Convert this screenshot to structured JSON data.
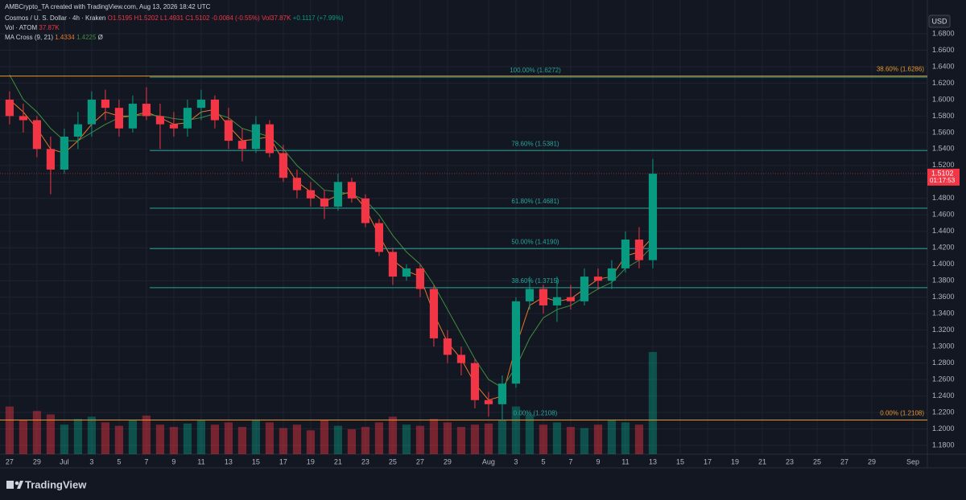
{
  "header": {
    "credit": "AMBCrypto_TA created with TradingView.com, Aug 13, 2026 18:42 UTC",
    "symbol": "Cosmos / U. S. Dollar · 4h · Kraken",
    "ohlc": [
      "O1.5195",
      "H1.5202",
      "L1.4931",
      "C1.5102",
      "-0.0084 (-0.55%)"
    ],
    "vol": "Vol37.87K",
    "change": "+0.1117 (+7.99%)",
    "vol_indicator": "Vol · ATOM",
    "vol_value": "37.87K",
    "ma_indicator": "MA Cross (9, 21)",
    "ma_values": [
      "1.4334",
      "1.4225"
    ],
    "ma_extra": "Ø",
    "currency": "USD",
    "price_tag": "1.5102",
    "countdown": "01:17:53",
    "brand": "TradingView"
  },
  "chart_data": {
    "type": "candlestick",
    "x": [
      0,
      1,
      2,
      3,
      4,
      5,
      6,
      7,
      8,
      9,
      10,
      11,
      12,
      13,
      14,
      15,
      16,
      17,
      18,
      19,
      20,
      21,
      22,
      23,
      24,
      25,
      26,
      27,
      28,
      29,
      30,
      31,
      32,
      33,
      34,
      35,
      36,
      37,
      38,
      39,
      40,
      41,
      42,
      43,
      44,
      45,
      46,
      47
    ],
    "open": [
      1.6,
      1.58,
      1.575,
      1.54,
      1.515,
      1.555,
      1.57,
      1.6,
      1.59,
      1.565,
      1.595,
      1.58,
      1.57,
      1.565,
      1.59,
      1.6,
      1.575,
      1.55,
      1.54,
      1.57,
      1.535,
      1.505,
      1.49,
      1.48,
      1.47,
      1.5,
      1.48,
      1.45,
      1.415,
      1.385,
      1.395,
      1.37,
      1.31,
      1.29,
      1.28,
      1.235,
      1.23,
      1.255,
      1.355,
      1.37,
      1.35,
      1.36,
      1.355,
      1.385,
      1.38,
      1.395,
      1.43,
      1.405
    ],
    "high": [
      1.61,
      1.595,
      1.58,
      1.555,
      1.565,
      1.585,
      1.61,
      1.612,
      1.6,
      1.605,
      1.615,
      1.595,
      1.585,
      1.6,
      1.612,
      1.605,
      1.59,
      1.565,
      1.58,
      1.575,
      1.545,
      1.515,
      1.5,
      1.49,
      1.51,
      1.505,
      1.485,
      1.455,
      1.42,
      1.4,
      1.4,
      1.375,
      1.32,
      1.3,
      1.285,
      1.245,
      1.265,
      1.36,
      1.385,
      1.375,
      1.385,
      1.375,
      1.395,
      1.395,
      1.405,
      1.44,
      1.445,
      1.528
    ],
    "low": [
      1.57,
      1.56,
      1.53,
      1.485,
      1.51,
      1.54,
      1.555,
      1.575,
      1.555,
      1.56,
      1.575,
      1.54,
      1.555,
      1.555,
      1.575,
      1.565,
      1.54,
      1.525,
      1.535,
      1.53,
      1.5,
      1.48,
      1.47,
      1.455,
      1.465,
      1.475,
      1.445,
      1.41,
      1.375,
      1.38,
      1.36,
      1.3,
      1.28,
      1.265,
      1.225,
      1.215,
      1.21,
      1.25,
      1.345,
      1.34,
      1.33,
      1.345,
      1.35,
      1.37,
      1.37,
      1.39,
      1.395,
      1.395
    ],
    "close": [
      1.58,
      1.575,
      1.54,
      1.515,
      1.555,
      1.57,
      1.6,
      1.59,
      1.565,
      1.595,
      1.58,
      1.57,
      1.565,
      1.59,
      1.6,
      1.575,
      1.55,
      1.54,
      1.57,
      1.535,
      1.505,
      1.49,
      1.48,
      1.47,
      1.5,
      1.48,
      1.45,
      1.415,
      1.385,
      1.395,
      1.37,
      1.31,
      1.29,
      1.28,
      1.235,
      1.23,
      1.255,
      1.355,
      1.37,
      1.35,
      1.36,
      1.355,
      1.385,
      1.38,
      1.395,
      1.43,
      1.405,
      1.51
    ],
    "volume": [
      420,
      300,
      380,
      350,
      260,
      310,
      330,
      280,
      250,
      300,
      340,
      260,
      240,
      270,
      300,
      260,
      280,
      240,
      300,
      280,
      230,
      260,
      210,
      300,
      250,
      220,
      240,
      280,
      330,
      260,
      250,
      310,
      280,
      240,
      260,
      270,
      300,
      420,
      350,
      260,
      280,
      240,
      230,
      260,
      300,
      280,
      260,
      900
    ],
    "up_color": "#089981",
    "down_color": "#f23645",
    "series": [
      {
        "color": "#e8782c",
        "values": [
          1.6,
          1.585,
          1.565,
          1.54,
          1.535,
          1.55,
          1.57,
          1.585,
          1.58,
          1.58,
          1.585,
          1.578,
          1.57,
          1.572,
          1.585,
          1.588,
          1.568,
          1.55,
          1.552,
          1.555,
          1.525,
          1.5,
          1.488,
          1.476,
          1.484,
          1.488,
          1.468,
          1.435,
          1.405,
          1.392,
          1.385,
          1.34,
          1.305,
          1.285,
          1.255,
          1.235,
          1.24,
          1.3,
          1.35,
          1.36,
          1.355,
          1.358,
          1.37,
          1.382,
          1.385,
          1.41,
          1.415,
          1.433
        ]
      },
      {
        "color": "#3f8f3f",
        "values": [
          1.63,
          1.6,
          1.585,
          1.565,
          1.55,
          1.55,
          1.56,
          1.57,
          1.578,
          1.58,
          1.582,
          1.58,
          1.577,
          1.575,
          1.578,
          1.583,
          1.578,
          1.565,
          1.56,
          1.555,
          1.54,
          1.52,
          1.505,
          1.49,
          1.488,
          1.485,
          1.478,
          1.46,
          1.435,
          1.415,
          1.4,
          1.375,
          1.345,
          1.315,
          1.285,
          1.26,
          1.25,
          1.275,
          1.31,
          1.335,
          1.345,
          1.35,
          1.36,
          1.37,
          1.378,
          1.395,
          1.405,
          1.4225
        ]
      }
    ],
    "fib_color": "#26a69a",
    "fib_levels": [
      {
        "value": 1.6272,
        "label": "100.00% (1.6272)"
      },
      {
        "value": 1.5381,
        "label": "78.60% (1.5381)"
      },
      {
        "value": 1.4681,
        "label": "61.80% (1.4681)"
      },
      {
        "value": 1.419,
        "label": "50.00% (1.4190)"
      },
      {
        "value": 1.3715,
        "label": "38.60% (1.3715)"
      },
      {
        "value": 1.2108,
        "label": "0.00% (1.2108)"
      }
    ],
    "level_color": "#e6962e",
    "levels": [
      {
        "value": 1.6286,
        "label": "38.60% (1.6286)"
      },
      {
        "value": 1.2108,
        "label": "0.00% (1.2108)"
      }
    ],
    "last_price": 1.5102,
    "xlim": [
      -0.7,
      67.06
    ],
    "ylim": [
      1.1693,
      1.721
    ],
    "y2lim": [
      0,
      4000
    ],
    "xticks": [
      {
        "value": 0,
        "label": "27"
      },
      {
        "value": 2,
        "label": "29"
      },
      {
        "value": 4,
        "label": "Jul"
      },
      {
        "value": 6,
        "label": "3"
      },
      {
        "value": 8,
        "label": "5"
      },
      {
        "value": 10,
        "label": "7"
      },
      {
        "value": 12,
        "label": "9"
      },
      {
        "value": 14,
        "label": "11"
      },
      {
        "value": 16,
        "label": "13"
      },
      {
        "value": 18,
        "label": "15"
      },
      {
        "value": 20,
        "label": "17"
      },
      {
        "value": 22,
        "label": "19"
      },
      {
        "value": 24,
        "label": "21"
      },
      {
        "value": 26,
        "label": "23"
      },
      {
        "value": 28,
        "label": "25"
      },
      {
        "value": 30,
        "label": "27"
      },
      {
        "value": 32,
        "label": "29"
      },
      {
        "value": 35,
        "label": "Aug"
      },
      {
        "value": 37,
        "label": "3"
      },
      {
        "value": 39,
        "label": "5"
      },
      {
        "value": 41,
        "label": "7"
      },
      {
        "value": 43,
        "label": "9"
      },
      {
        "value": 45,
        "label": "11"
      },
      {
        "value": 47,
        "label": "13"
      },
      {
        "value": 49,
        "label": "15"
      },
      {
        "value": 51,
        "label": "17"
      },
      {
        "value": 53,
        "label": "19"
      },
      {
        "value": 55,
        "label": "21"
      },
      {
        "value": 57,
        "label": "23"
      },
      {
        "value": 59,
        "label": "25"
      },
      {
        "value": 61,
        "label": "27"
      },
      {
        "value": 63,
        "label": "29"
      },
      {
        "value": 66,
        "label": "Sep"
      }
    ],
    "yticks": [
      {
        "value": 1.68,
        "label": "1.6800"
      },
      {
        "value": 1.66,
        "label": "1.6600"
      },
      {
        "value": 1.64,
        "label": "1.6400"
      },
      {
        "value": 1.62,
        "label": "1.6200"
      },
      {
        "value": 1.6,
        "label": "1.6000"
      },
      {
        "value": 1.58,
        "label": "1.5800"
      },
      {
        "value": 1.56,
        "label": "1.5600"
      },
      {
        "value": 1.54,
        "label": "1.5400"
      },
      {
        "value": 1.52,
        "label": "1.5200"
      },
      {
        "value": 1.5,
        "label": "1.5000"
      },
      {
        "value": 1.48,
        "label": "1.4800"
      },
      {
        "value": 1.46,
        "label": "1.4600"
      },
      {
        "value": 1.44,
        "label": "1.4400"
      },
      {
        "value": 1.42,
        "label": "1.4200"
      },
      {
        "value": 1.4,
        "label": "1.4000"
      },
      {
        "value": 1.38,
        "label": "1.3800"
      },
      {
        "value": 1.36,
        "label": "1.3600"
      },
      {
        "value": 1.34,
        "label": "1.3400"
      },
      {
        "value": 1.32,
        "label": "1.3200"
      },
      {
        "value": 1.3,
        "label": "1.3000"
      },
      {
        "value": 1.28,
        "label": "1.2800"
      },
      {
        "value": 1.26,
        "label": "1.2600"
      },
      {
        "value": 1.24,
        "label": "1.2400"
      },
      {
        "value": 1.22,
        "label": "1.2200"
      },
      {
        "value": 1.2,
        "label": "1.2000"
      },
      {
        "value": 1.18,
        "label": "1.1800"
      }
    ],
    "grid": true
  }
}
